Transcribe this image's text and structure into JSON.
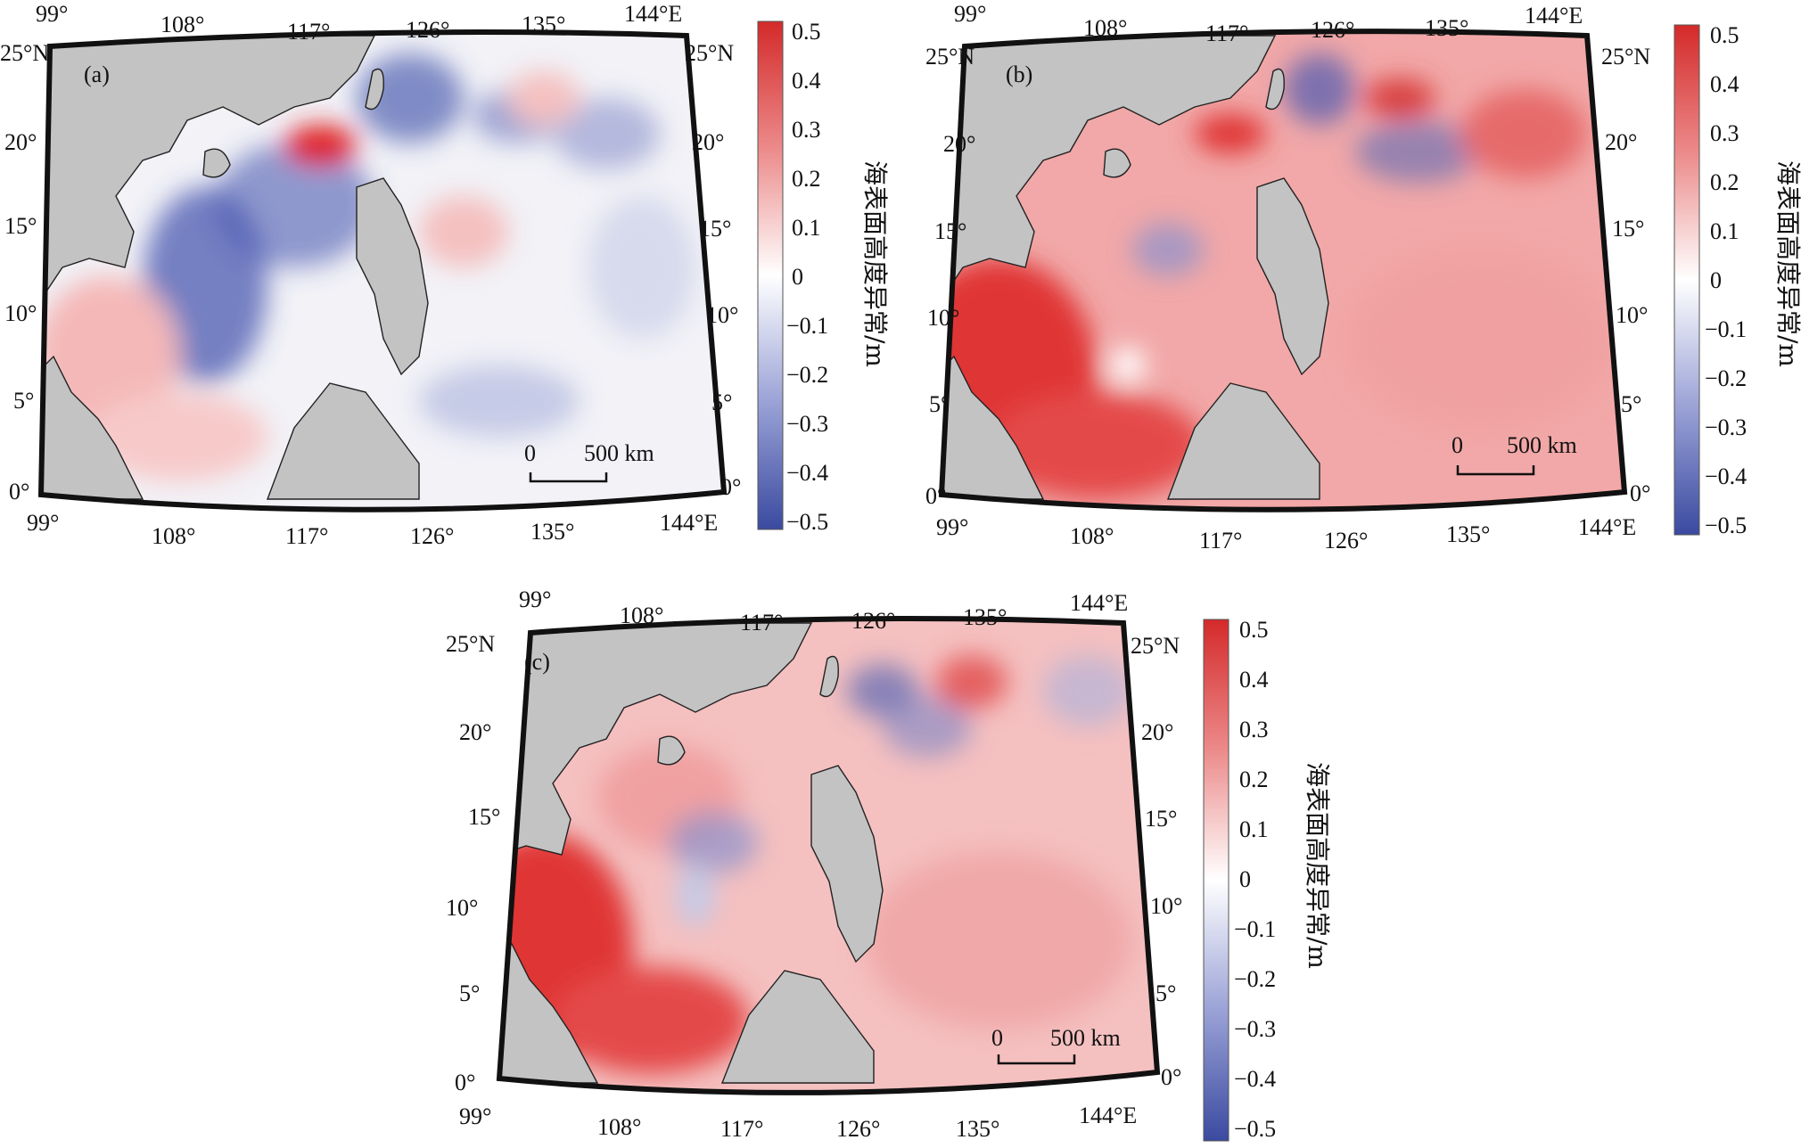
{
  "panels": [
    {
      "id": "a",
      "label": "(a)",
      "top_lon_labels": [
        "99°",
        "108°",
        "117°",
        "126°",
        "135°",
        "144°E"
      ],
      "bottom_lon_labels": [
        "99°",
        "108°",
        "117°",
        "126°",
        "135°",
        "144°E"
      ],
      "left_lat_labels": [
        "25°N",
        "20°",
        "15°",
        "10°",
        "5°",
        "0°"
      ],
      "right_lat_labels": [
        "25°N",
        "20°",
        "15°",
        "10°",
        "5°",
        "0°"
      ],
      "scale_bar": {
        "start": "0",
        "end": "500 km"
      },
      "anomaly_pattern": "mixed",
      "colorbar": {
        "title": "海表面高度异常/m",
        "ticks": [
          "0.5",
          "0.4",
          "0.3",
          "0.2",
          "0.1",
          "0",
          "−0.1",
          "−0.2",
          "−0.3",
          "−0.4",
          "−0.5"
        ]
      }
    },
    {
      "id": "b",
      "label": "(b)",
      "top_lon_labels": [
        "99°",
        "108°",
        "117°",
        "126°",
        "135°",
        "144°E"
      ],
      "bottom_lon_labels": [
        "99°",
        "108°",
        "117°",
        "126°",
        "135°",
        "144°E"
      ],
      "left_lat_labels": [
        "25°N",
        "20°",
        "15°",
        "10°",
        "5°",
        "0°"
      ],
      "right_lat_labels": [
        "25°N",
        "20°",
        "15°",
        "10°",
        "5°",
        "0°"
      ],
      "scale_bar": {
        "start": "0",
        "end": "500 km"
      },
      "anomaly_pattern": "positive",
      "colorbar": {
        "title": "海表面高度异常/m",
        "ticks": [
          "0.5",
          "0.4",
          "0.3",
          "0.2",
          "0.1",
          "0",
          "−0.1",
          "−0.2",
          "−0.3",
          "−0.4",
          "−0.5"
        ]
      }
    },
    {
      "id": "c",
      "label": "(c)",
      "top_lon_labels": [
        "99°",
        "108°",
        "117°",
        "126°",
        "135°",
        "144°E"
      ],
      "bottom_lon_labels": [
        "99°",
        "108°",
        "117°",
        "126°",
        "135°",
        "144°E"
      ],
      "left_lat_labels": [
        "25°N",
        "20°",
        "15°",
        "10°",
        "5°",
        "0°"
      ],
      "right_lat_labels": [
        "25°N",
        "20°",
        "15°",
        "10°",
        "5°",
        "0°"
      ],
      "scale_bar": {
        "start": "0",
        "end": "500 km"
      },
      "anomaly_pattern": "positive",
      "colorbar": {
        "title": "海表面高度异常/m",
        "ticks": [
          "0.5",
          "0.4",
          "0.3",
          "0.2",
          "0.1",
          "0",
          "−0.1",
          "−0.2",
          "−0.3",
          "−0.4",
          "−0.5"
        ]
      }
    }
  ],
  "colors": {
    "land": "#c3c3c3",
    "frame": "#111111",
    "positive_max": "#d42a2a",
    "negative_max": "#3a4aa0",
    "zero": "#ffffff"
  }
}
